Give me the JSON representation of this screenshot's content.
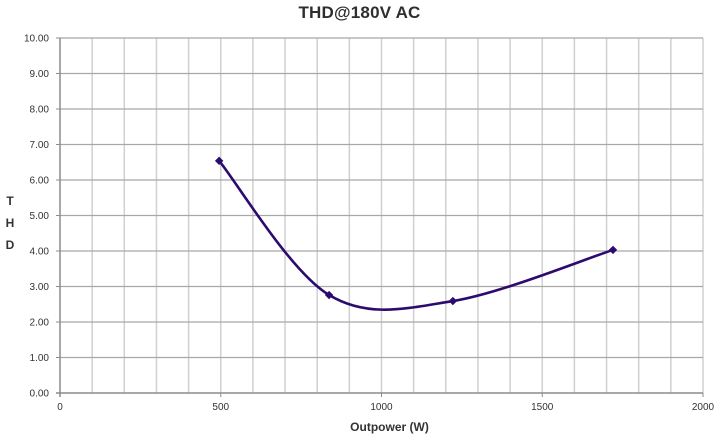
{
  "chart_data": {
    "type": "line",
    "title": "THD@180V AC",
    "xlabel": "Outpower (W)",
    "ylabel": "THD",
    "xlim": [
      0,
      2000
    ],
    "ylim": [
      0,
      10
    ],
    "x_ticks": [
      "0",
      "500",
      "1000",
      "1500",
      "2000"
    ],
    "y_ticks": [
      "0.00",
      "1.00",
      "2.00",
      "3.00",
      "4.00",
      "5.00",
      "6.00",
      "7.00",
      "8.00",
      "9.00",
      "10.00"
    ],
    "grid": true,
    "minor_x_grid_step": 100,
    "smoothed": true,
    "legend": null,
    "series": [
      {
        "name": "THD",
        "color": "#2d0a6e",
        "marker": "diamond",
        "x": [
          495,
          837,
          1222,
          1720
        ],
        "y": [
          6.54,
          2.76,
          2.59,
          4.03
        ]
      }
    ]
  },
  "ylabel_letters": [
    "T",
    "H",
    "D"
  ]
}
